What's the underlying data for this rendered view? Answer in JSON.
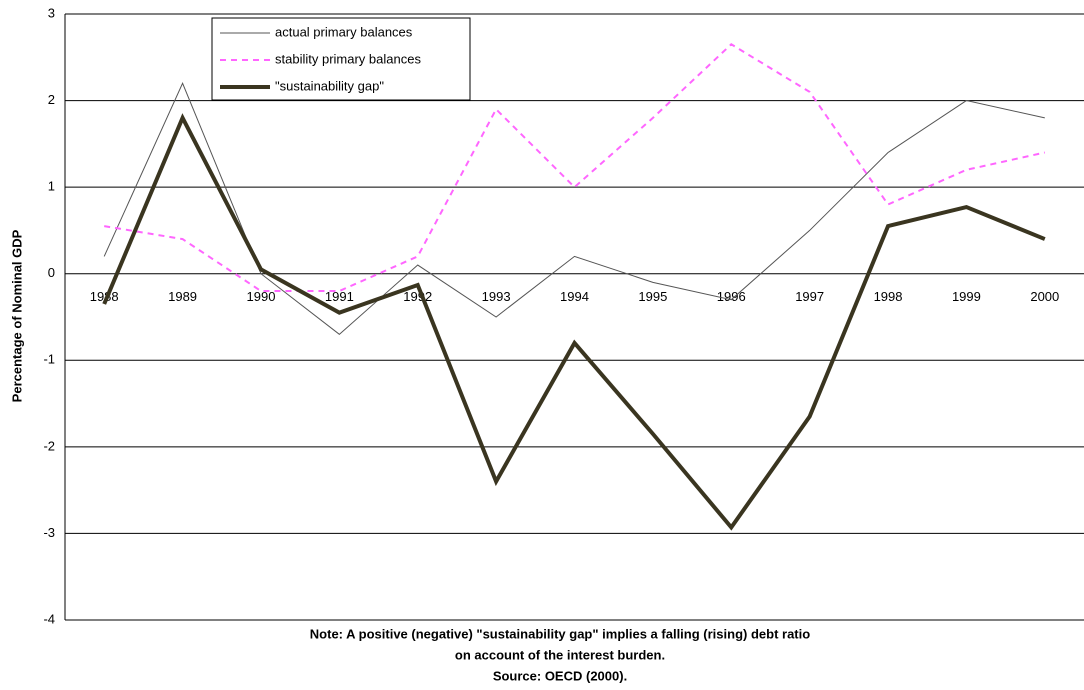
{
  "chart_data": {
    "type": "line",
    "y_label": "Percentage of Nominal GDP",
    "categories": [
      "1988",
      "1989",
      "1990",
      "1991",
      "1992",
      "1993",
      "1994",
      "1995",
      "1996",
      "1997",
      "1998",
      "1999",
      "2000"
    ],
    "series": [
      {
        "name": "actual primary balances",
        "color": "#555555",
        "style": "solid",
        "width": 1,
        "values": [
          0.2,
          2.2,
          0.0,
          -0.7,
          0.1,
          -0.5,
          0.2,
          -0.1,
          -0.3,
          0.5,
          1.4,
          2.0,
          1.8
        ]
      },
      {
        "name": "stability primary balances",
        "color": "#ff66ff",
        "style": "dashed",
        "width": 2,
        "values": [
          0.55,
          0.4,
          -0.2,
          -0.2,
          0.2,
          1.9,
          1.0,
          1.8,
          2.65,
          2.1,
          0.8,
          1.2,
          1.4
        ]
      },
      {
        "name": "\"sustainability gap\"",
        "color": "#3a3520",
        "style": "solid",
        "width": 4,
        "values": [
          -0.35,
          1.8,
          0.05,
          -0.45,
          -0.13,
          -2.4,
          -0.8,
          -1.85,
          -2.93,
          -1.65,
          0.55,
          0.77,
          0.4
        ]
      }
    ],
    "ylim": [
      -4,
      3
    ],
    "yticks": [
      -4,
      -3,
      -2,
      -1,
      0,
      1,
      2,
      3
    ],
    "grid": true,
    "notes": [
      "Note: A positive (negative) \"sustainability gap\" implies a falling (rising) debt ratio",
      "on account of the interest burden.",
      "Source: OECD (2000)."
    ]
  }
}
